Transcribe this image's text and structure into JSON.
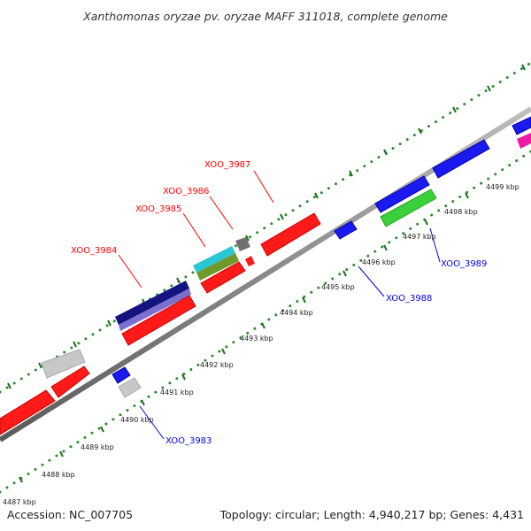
{
  "title": "Xanthomonas oryzae pv. oryzae MAFF 311018, complete genome",
  "footer": {
    "accession": "Accession: NC_007705",
    "summary": "Topology: circular; Length: 4,940,217 bp; Genes: 4,431"
  },
  "colors": {
    "backbone": "#8c8c8c",
    "tick_dots": "#2a8a2a",
    "tick_major": "#1f6f1f",
    "forward_label": "#ff0000",
    "reverse_label": "#0000ee",
    "gene_red": "#ff1a1a",
    "gene_blue": "#1a1aee",
    "gene_navy": "#141480",
    "gene_lavender": "#7b6fd0",
    "gene_gray": "#c8c8c8",
    "gene_dark_gray": "#707070",
    "gene_cyan": "#29c6d6",
    "gene_olive": "#6f9a2a",
    "gene_green": "#3ccf3c",
    "gene_magenta": "#ee1aa5"
  },
  "scale": {
    "unit": "kbp",
    "labels": [
      "4487 kbp",
      "4488 kbp",
      "4489 kbp",
      "4490 kbp",
      "4491 kbp",
      "4492 kbp",
      "4493 kbp",
      "4494 kbp",
      "4495 kbp",
      "4496 kbp",
      "4497 kbp",
      "4498 kbp",
      "4499 kbp"
    ]
  },
  "gene_labels": {
    "forward": [
      "XOO_3987",
      "XOO_3986",
      "XOO_3985",
      "XOO_3984"
    ],
    "reverse": [
      "XOO_3989",
      "XOO_3988",
      "XOO_3983"
    ]
  }
}
